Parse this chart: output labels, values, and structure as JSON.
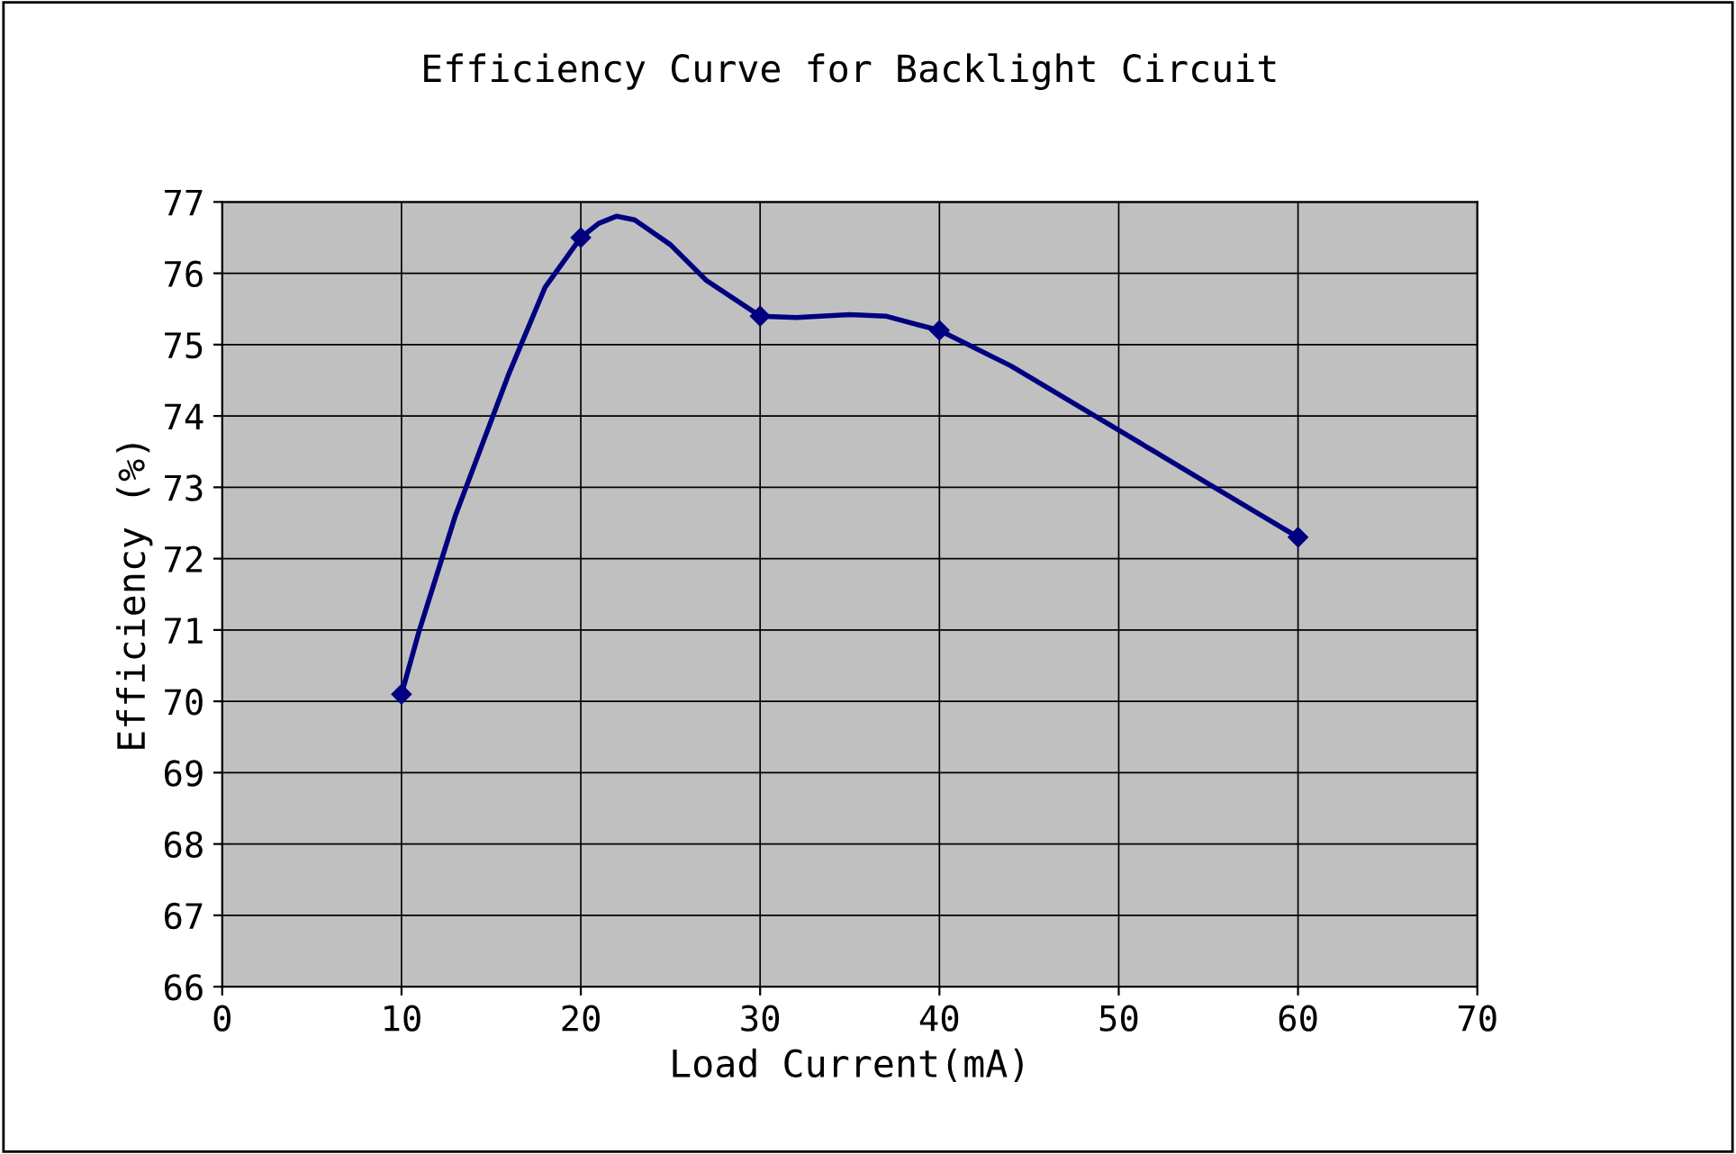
{
  "chart_data": {
    "type": "line",
    "title": "Efficiency Curve for Backlight Circuit",
    "xlabel": "Load Current(mA)",
    "ylabel": "Efficiency (%)",
    "series": [
      {
        "color": "#000080",
        "marker": "none",
        "x": [
          10,
          11,
          13,
          16,
          18,
          20,
          21,
          22,
          23,
          25,
          27,
          30,
          32,
          35,
          37,
          40,
          44,
          48,
          52,
          56,
          58,
          60
        ],
        "values": [
          70.1,
          71.0,
          72.6,
          74.6,
          75.8,
          76.5,
          76.7,
          76.8,
          76.75,
          76.4,
          75.9,
          75.4,
          75.38,
          75.42,
          75.4,
          75.2,
          74.7,
          74.1,
          73.5,
          72.9,
          72.6,
          72.3
        ]
      },
      {
        "type": "scatter",
        "color": "#000080",
        "marker": "diamond",
        "x": [
          10,
          20,
          30,
          40,
          60
        ],
        "values": [
          70.1,
          76.5,
          75.4,
          75.2,
          72.3
        ]
      }
    ],
    "xlim": [
      0,
      70
    ],
    "xticks": [
      0,
      10,
      20,
      30,
      40,
      50,
      60,
      70
    ],
    "ylim": [
      66,
      77
    ],
    "yticks": [
      66,
      67,
      68,
      69,
      70,
      71,
      72,
      73,
      74,
      75,
      76,
      77
    ],
    "grid": true,
    "line_style": "solid"
  }
}
